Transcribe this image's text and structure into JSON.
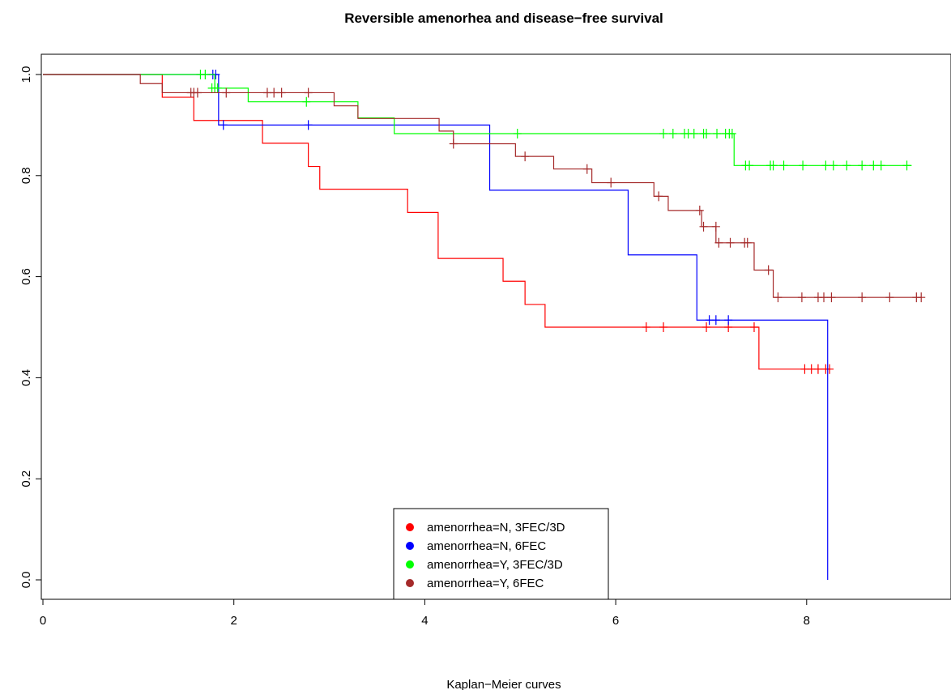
{
  "chart_data": {
    "type": "line",
    "title": "Reversible amenorhea and disease−free survival",
    "xlabel": "Kaplan−Meier curves",
    "ylabel": "",
    "xlim": [
      0,
      9.3
    ],
    "ylim": [
      0,
      1.0
    ],
    "x_ticks": [
      0,
      2,
      4,
      6,
      8
    ],
    "x_tick_labels": [
      "0",
      "2",
      "4",
      "6",
      "8"
    ],
    "y_ticks": [
      0.0,
      0.2,
      0.4,
      0.6,
      0.8,
      1.0
    ],
    "y_tick_labels": [
      "0.0",
      "0.2",
      "0.4",
      "0.6",
      "0.8",
      "1.0"
    ],
    "grid": false,
    "legend_position": "bottom-center",
    "series": [
      {
        "name": "amenorrhea=N, 3FEC/3D",
        "color": "#ff0000",
        "steps": [
          [
            0,
            1.0
          ],
          [
            1.25,
            0.955
          ],
          [
            1.58,
            0.909
          ],
          [
            2.3,
            0.864
          ],
          [
            2.78,
            0.818
          ],
          [
            2.9,
            0.773
          ],
          [
            3.82,
            0.727
          ],
          [
            4.14,
            0.636
          ],
          [
            4.82,
            0.591
          ],
          [
            5.05,
            0.545
          ],
          [
            5.26,
            0.5
          ],
          [
            7.5,
            0.417
          ],
          [
            8.25,
            0.417
          ]
        ],
        "censored": [
          [
            6.32,
            0.5
          ],
          [
            6.5,
            0.5
          ],
          [
            6.95,
            0.5
          ],
          [
            7.18,
            0.5
          ],
          [
            7.45,
            0.5
          ],
          [
            7.98,
            0.417
          ],
          [
            8.05,
            0.417
          ],
          [
            8.12,
            0.417
          ],
          [
            8.2,
            0.417
          ],
          [
            8.24,
            0.417
          ]
        ]
      },
      {
        "name": "amenorrhea=N, 6FEC",
        "color": "#0000ff",
        "steps": [
          [
            0,
            1.0
          ],
          [
            1.84,
            0.9
          ],
          [
            4.68,
            0.771
          ],
          [
            6.13,
            0.643
          ],
          [
            6.85,
            0.514
          ],
          [
            8.22,
            0.0
          ]
        ],
        "censored": [
          [
            1.78,
            1.0
          ],
          [
            1.81,
            1.0
          ],
          [
            1.89,
            0.9
          ],
          [
            2.78,
            0.9
          ],
          [
            6.98,
            0.514
          ],
          [
            7.05,
            0.514
          ],
          [
            7.18,
            0.514
          ]
        ]
      },
      {
        "name": "amenorrhea=Y, 3FEC/3D",
        "color": "#00ff00",
        "steps": [
          [
            0,
            1.0
          ],
          [
            1.8,
            0.973
          ],
          [
            2.15,
            0.946
          ],
          [
            3.3,
            0.914
          ],
          [
            3.68,
            0.883
          ],
          [
            7.24,
            0.82
          ],
          [
            9.1,
            0.82
          ]
        ],
        "censored": [
          [
            1.65,
            1.0
          ],
          [
            1.7,
            1.0
          ],
          [
            1.77,
            0.973
          ],
          [
            1.8,
            0.973
          ],
          [
            1.83,
            0.973
          ],
          [
            2.76,
            0.946
          ],
          [
            4.97,
            0.883
          ],
          [
            6.5,
            0.883
          ],
          [
            6.6,
            0.883
          ],
          [
            6.72,
            0.883
          ],
          [
            6.76,
            0.883
          ],
          [
            6.82,
            0.883
          ],
          [
            6.92,
            0.883
          ],
          [
            6.95,
            0.883
          ],
          [
            7.06,
            0.883
          ],
          [
            7.15,
            0.883
          ],
          [
            7.19,
            0.883
          ],
          [
            7.22,
            0.883
          ],
          [
            7.36,
            0.82
          ],
          [
            7.4,
            0.82
          ],
          [
            7.62,
            0.82
          ],
          [
            7.65,
            0.82
          ],
          [
            7.76,
            0.82
          ],
          [
            7.96,
            0.82
          ],
          [
            8.2,
            0.82
          ],
          [
            8.28,
            0.82
          ],
          [
            8.42,
            0.82
          ],
          [
            8.58,
            0.82
          ],
          [
            8.7,
            0.82
          ],
          [
            8.78,
            0.82
          ],
          [
            9.05,
            0.82
          ]
        ]
      },
      {
        "name": "amenorrhea=Y, 6FEC",
        "color": "#a52a2a",
        "steps": [
          [
            0,
            1.0
          ],
          [
            1.02,
            0.982
          ],
          [
            1.25,
            0.964
          ],
          [
            3.05,
            0.938
          ],
          [
            3.3,
            0.913
          ],
          [
            4.15,
            0.888
          ],
          [
            4.3,
            0.863
          ],
          [
            4.95,
            0.838
          ],
          [
            5.35,
            0.813
          ],
          [
            5.75,
            0.786
          ],
          [
            6.4,
            0.759
          ],
          [
            6.55,
            0.731
          ],
          [
            6.9,
            0.699
          ],
          [
            7.05,
            0.667
          ],
          [
            7.45,
            0.613
          ],
          [
            7.65,
            0.559
          ],
          [
            9.2,
            0.559
          ]
        ],
        "censored": [
          [
            1.55,
            0.964
          ],
          [
            1.58,
            0.964
          ],
          [
            1.62,
            0.964
          ],
          [
            1.92,
            0.964
          ],
          [
            2.35,
            0.964
          ],
          [
            2.42,
            0.964
          ],
          [
            2.5,
            0.964
          ],
          [
            2.78,
            0.964
          ],
          [
            4.3,
            0.863
          ],
          [
            5.05,
            0.838
          ],
          [
            5.7,
            0.813
          ],
          [
            5.95,
            0.786
          ],
          [
            6.45,
            0.759
          ],
          [
            6.88,
            0.731
          ],
          [
            6.92,
            0.699
          ],
          [
            7.05,
            0.699
          ],
          [
            7.08,
            0.667
          ],
          [
            7.2,
            0.667
          ],
          [
            7.35,
            0.667
          ],
          [
            7.38,
            0.667
          ],
          [
            7.6,
            0.613
          ],
          [
            7.7,
            0.559
          ],
          [
            7.95,
            0.559
          ],
          [
            8.12,
            0.559
          ],
          [
            8.18,
            0.559
          ],
          [
            8.26,
            0.559
          ],
          [
            8.58,
            0.559
          ],
          [
            8.87,
            0.559
          ],
          [
            9.15,
            0.559
          ],
          [
            9.2,
            0.559
          ]
        ]
      }
    ]
  }
}
